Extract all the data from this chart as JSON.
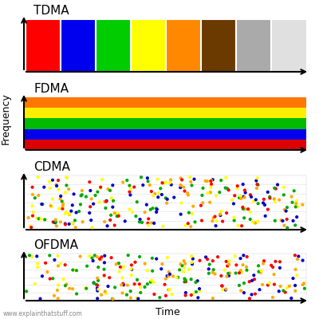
{
  "sections": [
    "TDMA",
    "FDMA",
    "CDMA",
    "OFDMA"
  ],
  "tdma_colors": [
    "#ff0000",
    "#0000ee",
    "#00cc00",
    "#ffff00",
    "#ff8800",
    "#6b3a00",
    "#aaaaaa",
    "#e0e0e0"
  ],
  "fdma_colors": [
    "#dd0000",
    "#0000ee",
    "#00bb00",
    "#ffee00",
    "#ff7700"
  ],
  "dot_colors": [
    "#ff0000",
    "#0000cc",
    "#00aa00",
    "#ffaa00",
    "#ffff00"
  ],
  "ylabel": "Frequency",
  "xlabel": "Time",
  "watermark": "www.explainthatstuff.com",
  "bg_color": "#ffffff"
}
